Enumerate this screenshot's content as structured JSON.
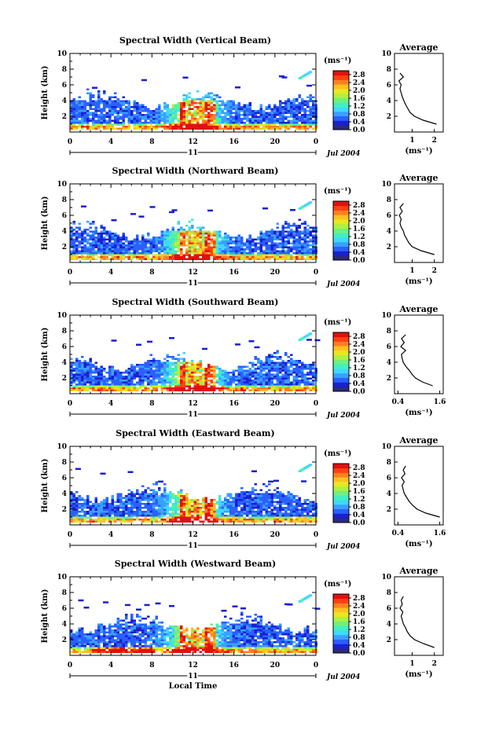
{
  "xlabel_bottom": "Local Time",
  "height_ylabel": "Height (km)",
  "date_label": "Jul 2004",
  "day_label": "11",
  "unit_label": "(ms⁻¹)",
  "avg_title": "Average",
  "avg_xlabel": "(ms⁻¹)",
  "colorbar": {
    "ticks": [
      "0.0",
      "0.4",
      "0.8",
      "1.2",
      "1.6",
      "2.0",
      "2.4",
      "2.8"
    ],
    "range": [
      0.0,
      3.0
    ],
    "colors": [
      "#2a2a7a",
      "#1a20d0",
      "#2a60ff",
      "#3aa0ff",
      "#40d8ff",
      "#40f0c0",
      "#70f080",
      "#b0f040",
      "#e8e820",
      "#ffc020",
      "#ff8020",
      "#ff4010",
      "#e01010"
    ]
  },
  "time_ticks": [
    "0",
    "4",
    "8",
    "12",
    "16",
    "20",
    "0"
  ],
  "height_ticks": [
    "2",
    "4",
    "6",
    "8",
    "10"
  ],
  "chart_data": [
    {
      "type": "heatmap",
      "title": "Spectral Width (Vertical Beam)",
      "xlabel": "Local Time",
      "ylabel": "Height (km)",
      "xlim": [
        0,
        24
      ],
      "ylim": [
        0,
        10
      ],
      "avg_xticks": [
        "1",
        "2"
      ],
      "avg_xlim": [
        0.2,
        2.4
      ],
      "average_profile": {
        "height": [
          1.0,
          1.5,
          2.0,
          2.5,
          3.0,
          3.5,
          4.0,
          4.5,
          5.0,
          5.5,
          6.0,
          6.5,
          7.0,
          7.5
        ],
        "width": [
          2.1,
          1.5,
          1.1,
          0.9,
          0.8,
          0.7,
          0.62,
          0.55,
          0.5,
          0.45,
          0.5,
          0.4,
          0.6,
          0.45
        ]
      }
    },
    {
      "type": "heatmap",
      "title": "Spectral Width (Northward Beam)",
      "xlabel": "Local Time",
      "ylabel": "Height (km)",
      "xlim": [
        0,
        24
      ],
      "ylim": [
        0,
        10
      ],
      "avg_xticks": [
        "1",
        "2"
      ],
      "avg_xlim": [
        0.2,
        2.4
      ],
      "average_profile": {
        "height": [
          1.0,
          1.5,
          2.0,
          2.5,
          3.0,
          3.5,
          4.0,
          4.5,
          5.0,
          5.5,
          6.0,
          6.5,
          7.0,
          7.5
        ],
        "width": [
          2.0,
          1.4,
          1.0,
          0.85,
          0.75,
          0.65,
          0.6,
          0.5,
          0.45,
          0.5,
          0.42,
          0.55,
          0.45,
          0.6
        ]
      }
    },
    {
      "type": "heatmap",
      "title": "Spectral Width (Southward Beam)",
      "xlabel": "Local Time",
      "ylabel": "Height (km)",
      "xlim": [
        0,
        24
      ],
      "ylim": [
        0,
        10
      ],
      "avg_xticks": [
        "0.4",
        "1.6"
      ],
      "avg_xlim": [
        0.3,
        1.7
      ],
      "average_profile": {
        "height": [
          1.0,
          1.5,
          2.0,
          2.5,
          3.0,
          3.5,
          4.0,
          4.5,
          5.0,
          5.5,
          6.0,
          6.5,
          7.0,
          7.5
        ],
        "width": [
          1.4,
          1.1,
          0.9,
          0.8,
          0.72,
          0.62,
          0.55,
          0.52,
          0.5,
          0.62,
          0.48,
          0.58,
          0.5,
          0.62
        ]
      }
    },
    {
      "type": "heatmap",
      "title": "Spectral Width (Eastward Beam)",
      "xlabel": "Local Time",
      "ylabel": "Height (km)",
      "xlim": [
        0,
        24
      ],
      "ylim": [
        0,
        10
      ],
      "avg_xticks": [
        "0.4",
        "1.6"
      ],
      "avg_xlim": [
        0.3,
        1.7
      ],
      "average_profile": {
        "height": [
          1.0,
          1.5,
          2.0,
          2.5,
          3.0,
          3.5,
          4.0,
          4.5,
          5.0,
          5.5,
          6.0,
          6.5,
          7.0,
          7.5
        ],
        "width": [
          1.6,
          1.2,
          0.95,
          0.82,
          0.72,
          0.65,
          0.58,
          0.55,
          0.52,
          0.58,
          0.5,
          0.6,
          0.55,
          0.62
        ]
      }
    },
    {
      "type": "heatmap",
      "title": "Spectral Width (Westward Beam)",
      "xlabel": "Local Time",
      "ylabel": "Height (km)",
      "xlim": [
        0,
        24
      ],
      "ylim": [
        0,
        10
      ],
      "avg_xticks": [
        "1",
        "2"
      ],
      "avg_xlim": [
        0.2,
        2.4
      ],
      "average_profile": {
        "height": [
          1.0,
          1.5,
          2.0,
          2.5,
          3.0,
          3.5,
          4.0,
          4.5,
          5.0,
          5.5,
          6.0,
          6.5,
          7.0,
          7.5
        ],
        "width": [
          2.0,
          1.5,
          1.1,
          0.9,
          0.78,
          0.7,
          0.6,
          0.55,
          0.5,
          0.58,
          0.45,
          0.55,
          0.5,
          0.6
        ]
      }
    }
  ]
}
